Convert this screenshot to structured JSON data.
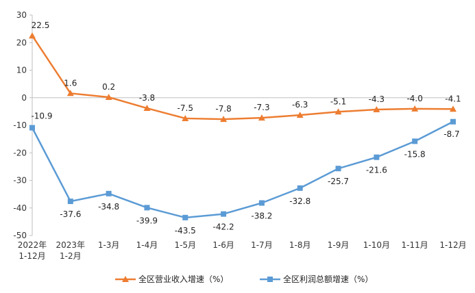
{
  "chart_data": {
    "type": "line",
    "categories": [
      [
        "2022年",
        "1-12月"
      ],
      [
        "2023年",
        "1-2月"
      ],
      [
        "1-3月"
      ],
      [
        "1-4月"
      ],
      [
        "1-5月"
      ],
      [
        "1-6月"
      ],
      [
        "1-7月"
      ],
      [
        "1-8月"
      ],
      [
        "1-9月"
      ],
      [
        "1-10月"
      ],
      [
        "1-11月"
      ],
      [
        "1-12月"
      ]
    ],
    "series": [
      {
        "name": "全区营业收入增速（%）",
        "color": "#ED7D31",
        "marker": "triangle",
        "values": [
          22.5,
          1.6,
          0.2,
          -3.8,
          -7.5,
          -7.8,
          -7.3,
          -6.3,
          -5.1,
          -4.3,
          -4.0,
          -4.1
        ],
        "labels": [
          "22.5",
          "1.6",
          "0.2",
          "-3.8",
          "-7.5",
          "-7.8",
          "-7.3",
          "-6.3",
          "-5.1",
          "-4.3",
          "-4.0",
          "-4.1"
        ]
      },
      {
        "name": "全区利润总额增速（%）",
        "color": "#5B9BD5",
        "marker": "square",
        "values": [
          -10.9,
          -37.6,
          -34.8,
          -39.9,
          -43.5,
          -42.2,
          -38.2,
          -32.8,
          -25.7,
          -21.6,
          -15.8,
          -8.7
        ],
        "labels": [
          "-10.9",
          "-37.6",
          "-34.8",
          "-39.9",
          "-43.5",
          "-42.2",
          "-38.2",
          "-32.8",
          "-25.7",
          "-21.6",
          "-15.8",
          "-8.7"
        ]
      }
    ],
    "ylim": [
      -50,
      30
    ],
    "yticks": [
      "30",
      "20",
      "10",
      "0",
      "-10",
      "-20",
      "-30",
      "-40",
      "-50"
    ],
    "grid": false,
    "legend_position": "bottom"
  }
}
